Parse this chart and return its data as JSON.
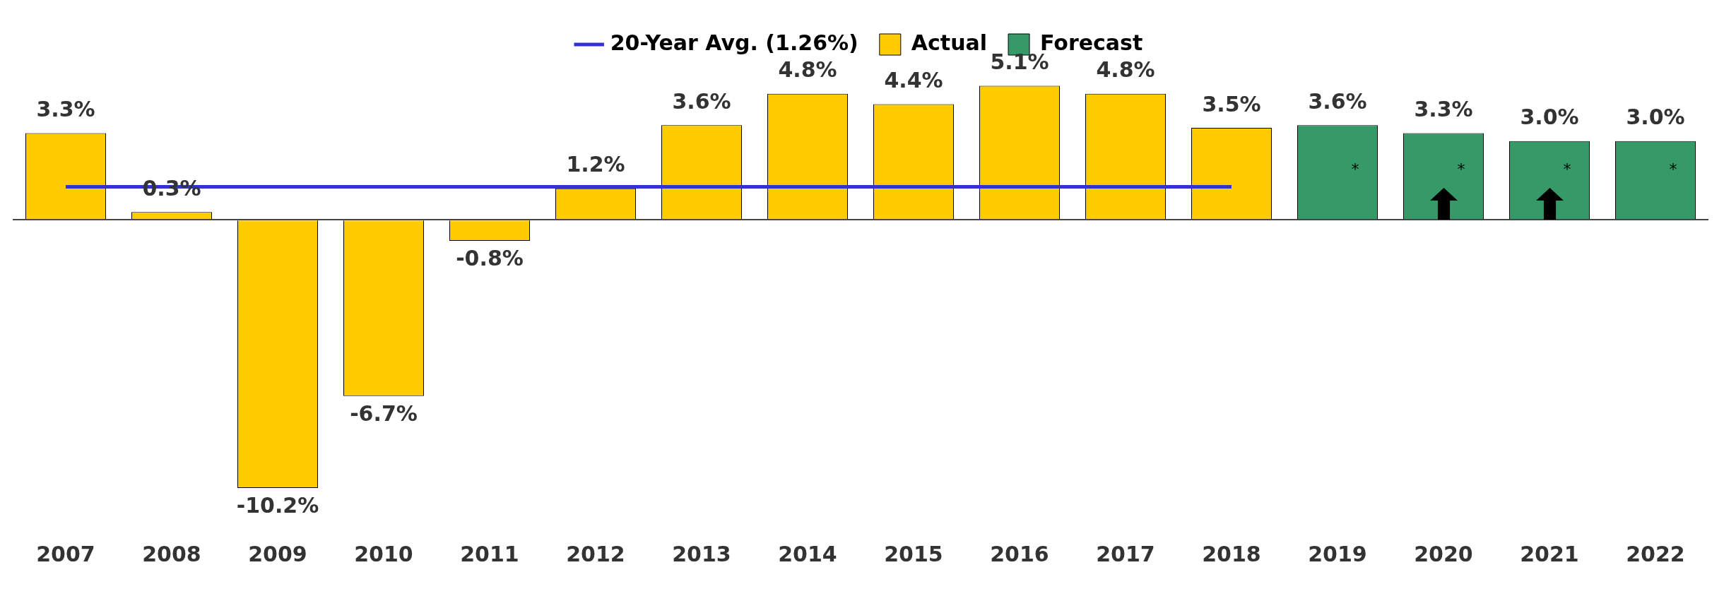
{
  "chart_data": {
    "type": "bar",
    "categories": [
      "2007",
      "2008",
      "2009",
      "2010",
      "2011",
      "2012",
      "2013",
      "2014",
      "2015",
      "2016",
      "2017",
      "2018",
      "2019",
      "2020",
      "2021",
      "2022"
    ],
    "series": [
      {
        "name": "Actual",
        "color": "#ffcc00",
        "values": [
          3.3,
          0.3,
          -10.2,
          -6.7,
          -0.8,
          1.2,
          3.6,
          4.8,
          4.4,
          5.1,
          4.8,
          3.5,
          null,
          null,
          null,
          null
        ],
        "value_labels": [
          "3.3%",
          "0.3%",
          "-10.2%",
          "-6.7%",
          "-0.8%",
          "1.2%",
          "3.6%",
          "4.8%",
          "4.4%",
          "5.1%",
          "4.8%",
          "3.5%",
          null,
          null,
          null,
          null
        ]
      },
      {
        "name": "Forecast",
        "color": "#359a68",
        "values": [
          null,
          null,
          null,
          null,
          null,
          null,
          null,
          null,
          null,
          null,
          null,
          null,
          3.6,
          3.3,
          3.0,
          3.0
        ],
        "value_labels": [
          null,
          null,
          null,
          null,
          null,
          null,
          null,
          null,
          null,
          null,
          null,
          null,
          "3.6%",
          "3.3%",
          "3.0%",
          "3.0%"
        ]
      },
      {
        "name": "20-Year Avg. (1.26%)",
        "type": "line",
        "color": "#3333cc",
        "values": [
          1.26,
          1.26,
          1.26,
          1.26,
          1.26,
          1.26,
          1.26,
          1.26,
          1.26,
          1.26,
          1.26,
          1.26,
          null,
          null,
          null,
          null
        ]
      }
    ],
    "annotations": [
      "*",
      "*",
      "*",
      "*"
    ],
    "legend": "top",
    "grid": false,
    "marker": "none"
  }
}
